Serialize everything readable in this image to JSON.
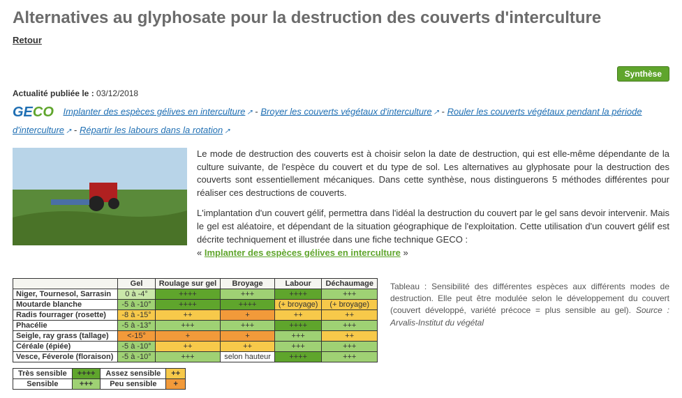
{
  "page": {
    "title": "Alternatives au glyphosate pour la destruction des couverts d'interculture",
    "back_label": "Retour",
    "synthese_label": "Synthèse",
    "pubdate_prefix": "Actualité publiée le :",
    "pubdate_value": "03/12/2018"
  },
  "geco": {
    "ge": "GE",
    "co": "CO"
  },
  "links": {
    "l1": "Implanter des espèces gélives en interculture",
    "l2": "Broyer les couverts végétaux d'interculture",
    "l3": "Rouler les couverts végétaux pendant la période d'interculture",
    "l4": "Répartir les labours dans la rotation",
    "sep": " - "
  },
  "body": {
    "p1": "Le mode de destruction des couverts est à choisir selon la date de destruction, qui est elle-même dépendante de la culture suivante, de l'espèce du couvert et du type de sol. Les alternatives au glyphosate pour la destruction des couverts sont essentiellement mécaniques. Dans cette synthèse, nous distinguerons 5 méthodes différentes pour réaliser ces destructions de couverts.",
    "p2a": "L'implantation d'un couvert gélif, permettra dans l'idéal la destruction du couvert par le gel sans devoir intervenir. Mais le gel est aléatoire, et dépendant de la situation géographique de l'exploitation. Cette utilisation d'un couvert gélif est décrite techniquement et illustrée dans une fiche technique GECO :",
    "p2_link_prefix": "« ",
    "p2_link": "Implanter des espèces gélives en interculture",
    "p2_link_suffix": " »"
  },
  "photo": {
    "sky_color": "#b8d4e8",
    "field_color": "#5a8a3a",
    "tractor_color": "#b02020"
  },
  "table": {
    "headers": [
      "",
      "Gel",
      "Roulage sur gel",
      "Broyage",
      "Labour",
      "Déchaumage"
    ],
    "colors": {
      "dark_green": "#5fa52c",
      "mid_green": "#9fd174",
      "light_green": "#c9e7a9",
      "yellow": "#f7c94a",
      "orange": "#f29a3a",
      "white": "#ffffff"
    },
    "rows": [
      {
        "label": "Niger, Tournesol, Sarrasin",
        "cells": [
          {
            "v": "0 à -4°",
            "c": "light_green"
          },
          {
            "v": "++++",
            "c": "dark_green"
          },
          {
            "v": "+++",
            "c": "mid_green"
          },
          {
            "v": "++++",
            "c": "dark_green"
          },
          {
            "v": "+++",
            "c": "mid_green"
          }
        ]
      },
      {
        "label": "Moutarde blanche",
        "cells": [
          {
            "v": "-5 à -10°",
            "c": "mid_green"
          },
          {
            "v": "++++",
            "c": "dark_green"
          },
          {
            "v": "++++",
            "c": "dark_green"
          },
          {
            "v": "(+ broyage)",
            "c": "yellow"
          },
          {
            "v": "(+ broyage)",
            "c": "yellow"
          }
        ]
      },
      {
        "label": "Radis fourrager (rosette)",
        "cells": [
          {
            "v": "-8 à -15°",
            "c": "yellow"
          },
          {
            "v": "++",
            "c": "yellow"
          },
          {
            "v": "+",
            "c": "orange"
          },
          {
            "v": "++",
            "c": "yellow"
          },
          {
            "v": "++",
            "c": "yellow"
          }
        ]
      },
      {
        "label": "Phacélie",
        "cells": [
          {
            "v": "-5 à -13°",
            "c": "mid_green"
          },
          {
            "v": "+++",
            "c": "mid_green"
          },
          {
            "v": "+++",
            "c": "mid_green"
          },
          {
            "v": "++++",
            "c": "dark_green"
          },
          {
            "v": "+++",
            "c": "mid_green"
          }
        ]
      },
      {
        "label": "Seigle, ray grass (tallage)",
        "cells": [
          {
            "v": "<-15°",
            "c": "orange"
          },
          {
            "v": "+",
            "c": "orange"
          },
          {
            "v": "+",
            "c": "orange"
          },
          {
            "v": "+++",
            "c": "mid_green"
          },
          {
            "v": "++",
            "c": "yellow"
          }
        ]
      },
      {
        "label": "Céréale (épiée)",
        "cells": [
          {
            "v": "-5 à -10°",
            "c": "mid_green"
          },
          {
            "v": "++",
            "c": "yellow"
          },
          {
            "v": "++",
            "c": "yellow"
          },
          {
            "v": "+++",
            "c": "mid_green"
          },
          {
            "v": "+++",
            "c": "mid_green"
          }
        ]
      },
      {
        "label": "Vesce, Féverole (floraison)",
        "cells": [
          {
            "v": "-5 à -10°",
            "c": "mid_green"
          },
          {
            "v": "+++",
            "c": "mid_green"
          },
          {
            "v": "selon hauteur",
            "c": "white"
          },
          {
            "v": "++++",
            "c": "dark_green"
          },
          {
            "v": "+++",
            "c": "mid_green"
          }
        ]
      }
    ],
    "legend": [
      [
        {
          "v": "Très sensible",
          "c": "white"
        },
        {
          "v": "++++",
          "c": "dark_green"
        },
        {
          "v": "Assez sensible",
          "c": "white"
        },
        {
          "v": "++",
          "c": "yellow"
        }
      ],
      [
        {
          "v": "Sensible",
          "c": "white"
        },
        {
          "v": "+++",
          "c": "mid_green"
        },
        {
          "v": "Peu sensible",
          "c": "white"
        },
        {
          "v": "+",
          "c": "orange"
        }
      ]
    ]
  },
  "caption": {
    "text": "Tableau : Sensibilité des différentes espèces aux différents modes de destruction. Elle peut être modulée selon le développement du couvert (couvert développé, variété précoce = plus sensible au gel). ",
    "source": "Source : Arvalis-Institut du végétal"
  }
}
